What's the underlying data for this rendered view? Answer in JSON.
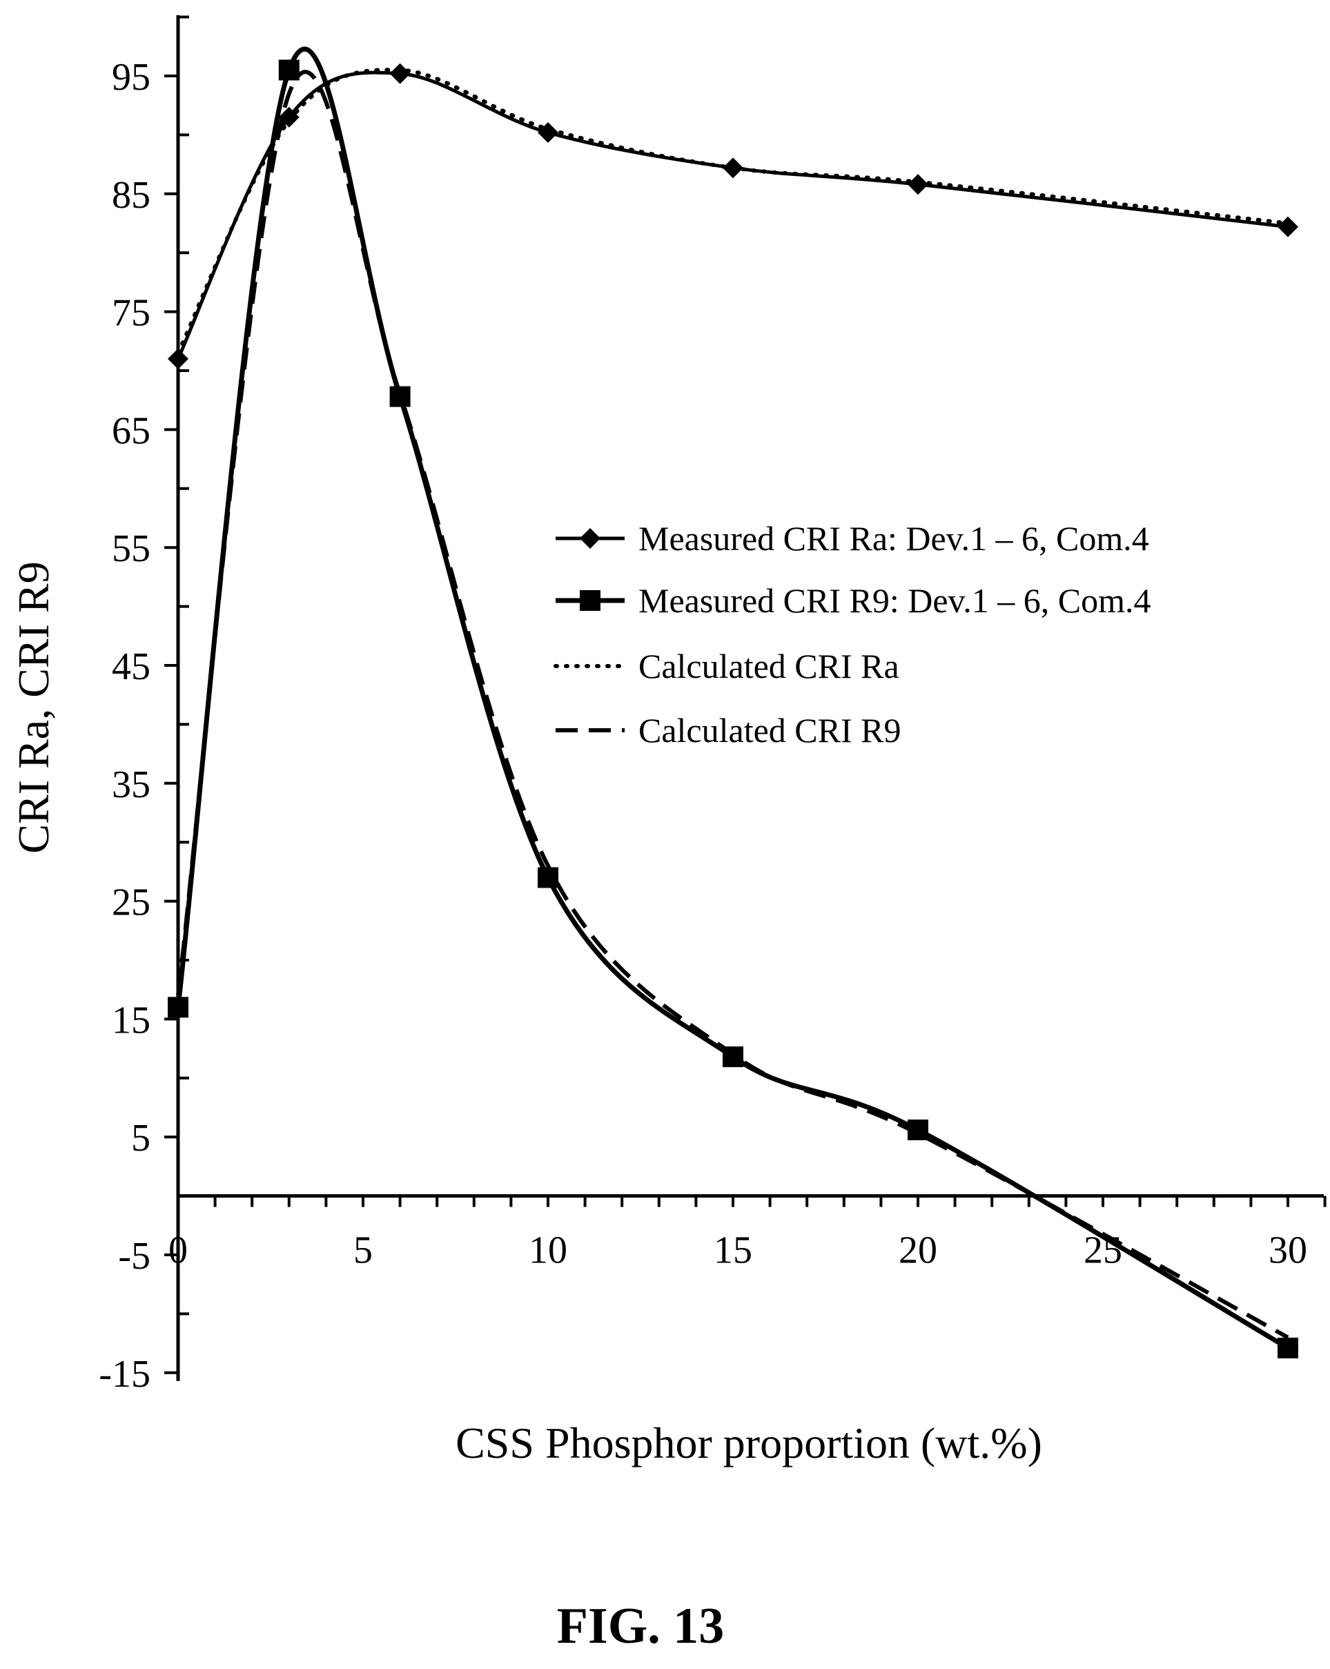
{
  "chart_data": {
    "type": "line",
    "xlabel": "CSS Phosphor proportion (wt.%)",
    "ylabel": "CRI Ra, CRI R9",
    "xlim": [
      0,
      31
    ],
    "ylim": [
      -15,
      100
    ],
    "x_ticks": [
      0,
      5,
      10,
      15,
      20,
      25,
      30
    ],
    "y_ticks": [
      95,
      85,
      75,
      65,
      55,
      45,
      35,
      25,
      15,
      5,
      -5,
      -15
    ],
    "grid": false,
    "legend_position": "center-right",
    "series": [
      {
        "name": "Measured CRI Ra: Dev.1 – 6, Com.4",
        "style": "solid-diamond",
        "x": [
          0,
          3,
          6,
          10,
          15,
          20,
          30
        ],
        "y": [
          71,
          91.5,
          95.2,
          90.2,
          87.2,
          85.8,
          82.2
        ]
      },
      {
        "name": "Measured CRI R9: Dev.1 – 6, Com.4",
        "style": "solid-square",
        "x": [
          0,
          3,
          6,
          10,
          15,
          20,
          30
        ],
        "y": [
          16,
          95.5,
          67.8,
          27,
          11.8,
          5.6,
          -12.9
        ]
      },
      {
        "name": "Calculated CRI Ra",
        "style": "dotted",
        "x": [
          0,
          3,
          6,
          10,
          15,
          20,
          30
        ],
        "y": [
          71.5,
          91.2,
          95.5,
          90.5,
          87.2,
          86,
          82.5
        ]
      },
      {
        "name": "Calculated CRI R9",
        "style": "dashed",
        "x": [
          0,
          3,
          6,
          10,
          15,
          20,
          30
        ],
        "y": [
          17,
          93.5,
          68,
          28,
          12,
          5.3,
          -12
        ]
      }
    ],
    "colors": {
      "line": "#000000",
      "background": "#ffffff"
    }
  },
  "caption": "FIG. 13"
}
